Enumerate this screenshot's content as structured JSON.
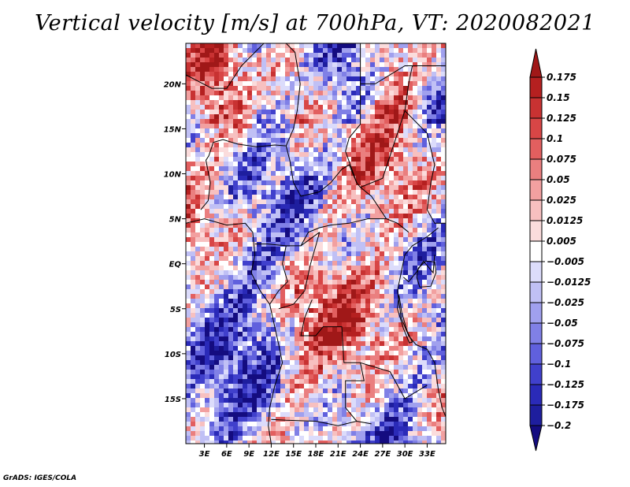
{
  "chart_data": {
    "type": "heatmap",
    "title": "Vertical velocity [m/s] at 700hPa, VT: 2020082021",
    "variable": "Vertical velocity",
    "units": "m/s",
    "level": "700hPa",
    "valid_time": "2020082021",
    "x_ticks": [
      "3E",
      "6E",
      "9E",
      "12E",
      "15E",
      "18E",
      "21E",
      "24E",
      "27E",
      "30E",
      "33E"
    ],
    "y_ticks": [
      "20N",
      "15N",
      "10N",
      "5N",
      "EQ",
      "5S",
      "10S",
      "15S"
    ],
    "x_tick_values": [
      3,
      6,
      9,
      12,
      15,
      18,
      21,
      24,
      27,
      30,
      33
    ],
    "y_tick_values": [
      20,
      15,
      10,
      5,
      0,
      -5,
      -10,
      -15
    ],
    "lon_range": [
      0.5,
      35.5
    ],
    "lat_range": [
      -20,
      24.5
    ],
    "colorbar": {
      "labels": [
        "0.175",
        "0.15",
        "0.125",
        "0.1",
        "0.075",
        "0.05",
        "0.025",
        "0.0125",
        "0.005",
        "−0.005",
        "−0.0125",
        "−0.025",
        "−0.05",
        "−0.075",
        "−0.1",
        "−0.125",
        "−0.175",
        "−0.2"
      ],
      "colors": [
        "#a01818",
        "#b52020",
        "#c83232",
        "#d84646",
        "#e25f5f",
        "#ea7f7f",
        "#f2a0a0",
        "#f7c0c0",
        "#fbdcdc",
        "#ffffff",
        "#dcdcfb",
        "#c0c0f5",
        "#a0a0ee",
        "#8080e6",
        "#6060dd",
        "#4040cc",
        "#2a2ab8",
        "#1e1e9e",
        "#140c80"
      ],
      "extends": "both"
    }
  },
  "footer": {
    "credit": "GrADS: IGES/COLA"
  }
}
